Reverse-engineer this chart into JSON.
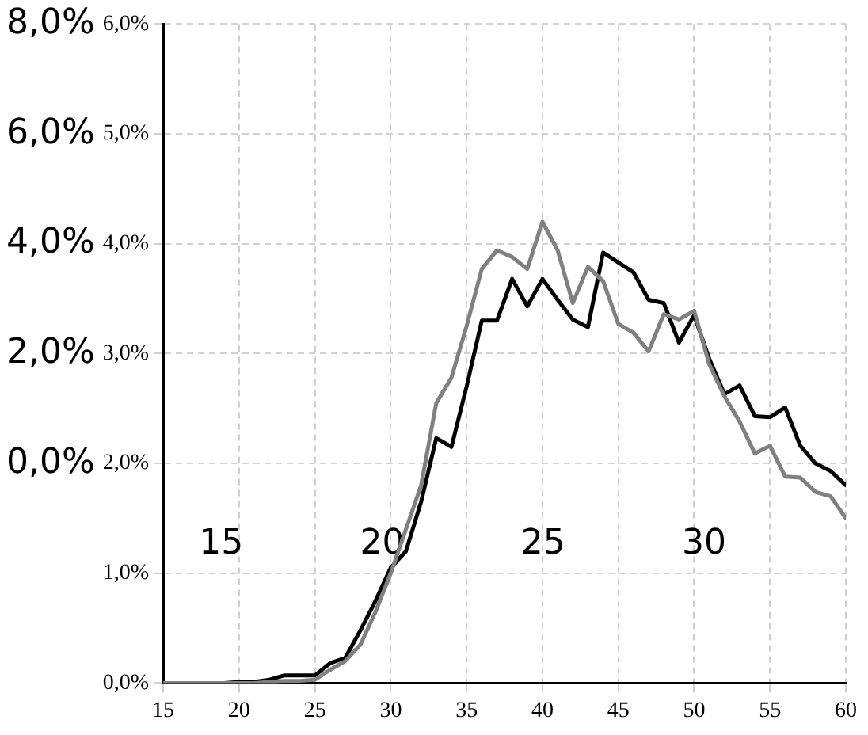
{
  "chart_data": {
    "type": "line",
    "x": [
      15,
      16,
      17,
      18,
      19,
      20,
      21,
      22,
      23,
      24,
      25,
      26,
      27,
      28,
      29,
      30,
      31,
      32,
      33,
      34,
      35,
      36,
      37,
      38,
      39,
      40,
      41,
      42,
      43,
      44,
      45,
      46,
      47,
      48,
      49,
      50,
      51,
      52,
      53,
      54,
      55,
      56,
      57,
      58,
      59,
      60
    ],
    "series": [
      {
        "color": "#808080",
        "values": [
          0,
          0,
          0,
          0,
          0,
          0,
          0,
          0.01,
          0.02,
          0.02,
          0.03,
          0.12,
          0.2,
          0.35,
          0.65,
          1.0,
          1.4,
          1.8,
          2.55,
          2.78,
          3.25,
          3.77,
          3.94,
          3.88,
          3.77,
          4.2,
          3.94,
          3.46,
          3.79,
          3.66,
          3.27,
          3.19,
          3.02,
          3.36,
          3.31,
          3.39,
          2.9,
          2.61,
          2.38,
          2.09,
          2.16,
          1.88,
          1.87,
          1.74,
          1.7,
          1.5
        ]
      },
      {
        "color": "#000000",
        "values": [
          0,
          0,
          0,
          0,
          0,
          0.01,
          0.01,
          0.03,
          0.07,
          0.07,
          0.07,
          0.18,
          0.23,
          0.48,
          0.75,
          1.05,
          1.2,
          1.65,
          2.23,
          2.15,
          2.7,
          3.3,
          3.3,
          3.68,
          3.43,
          3.68,
          3.49,
          3.31,
          3.24,
          3.92,
          3.83,
          3.74,
          3.49,
          3.46,
          3.1,
          3.35,
          2.95,
          2.63,
          2.71,
          2.43,
          2.42,
          2.51,
          2.16,
          2.0,
          1.93,
          1.8
        ]
      }
    ],
    "xlim": [
      15,
      60
    ],
    "xticks": [
      15,
      20,
      25,
      30,
      35,
      40,
      45,
      50,
      55,
      60
    ],
    "ylim": [
      0,
      6
    ],
    "yticks": [
      {
        "value": 0,
        "label": "0,0%"
      },
      {
        "value": 1,
        "label": "1,0%"
      },
      {
        "value": 2,
        "label": "2,0%"
      },
      {
        "value": 3,
        "label": "3,0%"
      },
      {
        "value": 4,
        "label": "4,0%"
      },
      {
        "value": 5,
        "label": "5,0%"
      },
      {
        "value": 6,
        "label": "6,0%"
      }
    ],
    "y2lim": [
      -4,
      8
    ],
    "y2ticks": [
      {
        "value": 0,
        "label": "0,0%"
      },
      {
        "value": 2,
        "label": "2,0%"
      },
      {
        "value": 4,
        "label": "4,0%"
      },
      {
        "value": 6,
        "label": "6,0%"
      },
      {
        "value": 8,
        "label": "8,0%"
      }
    ],
    "x2lim": [
      13.2,
      34.4
    ],
    "x2ticks": [
      15,
      20,
      25,
      30
    ],
    "grid": true,
    "marker": "none",
    "line_style": "solid",
    "legend": false
  }
}
